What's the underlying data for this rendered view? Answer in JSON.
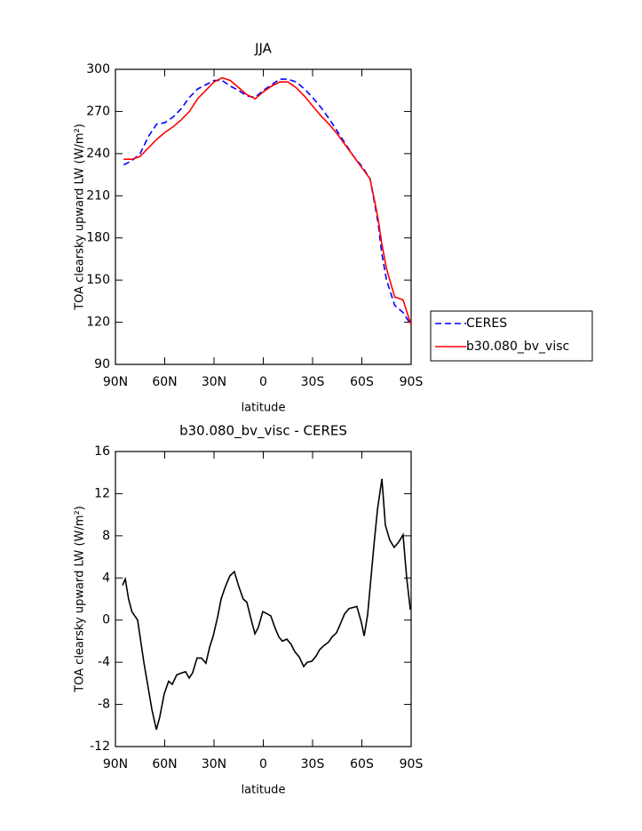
{
  "chart_data": [
    {
      "type": "line",
      "title": "JJA",
      "xlabel": "latitude",
      "ylabel": "TOA clearsky upward LW (W/m²)",
      "x": [
        85,
        80,
        75,
        70,
        65,
        60,
        55,
        50,
        45,
        40,
        35,
        30,
        25,
        20,
        15,
        10,
        5,
        0,
        -5,
        -10,
        -15,
        -20,
        -25,
        -30,
        -35,
        -40,
        -45,
        -50,
        -55,
        -60,
        -65,
        -68,
        -70,
        -72,
        -75,
        -80,
        -85,
        -90
      ],
      "series": [
        {
          "name": "CERES",
          "color": "#0000ff",
          "style": "dashed",
          "values": [
            232,
            235,
            240,
            252,
            261,
            262,
            266,
            272,
            280,
            286,
            289,
            292,
            292,
            288,
            285,
            281,
            280,
            285,
            289,
            293,
            293,
            291,
            286,
            280,
            273,
            265,
            256,
            247,
            238,
            231,
            222,
            203,
            190,
            170,
            150,
            132,
            127,
            118
          ]
        },
        {
          "name": "b30.080_bv_visc",
          "color": "#ff0000",
          "style": "solid",
          "values": [
            236,
            236,
            238,
            244,
            250,
            255,
            259,
            264,
            270,
            279,
            285,
            291,
            294,
            292,
            287,
            282,
            279,
            284,
            288,
            291,
            291,
            287,
            281,
            274,
            267,
            261,
            254,
            246,
            238,
            230,
            222,
            205,
            193,
            177,
            158,
            138,
            136,
            118
          ]
        }
      ],
      "xlim": [
        90,
        -90
      ],
      "xticks": [
        {
          "value": 90,
          "label": "90N"
        },
        {
          "value": 60,
          "label": "60N"
        },
        {
          "value": 30,
          "label": "30N"
        },
        0,
        {
          "value": -30,
          "label": "30S"
        },
        {
          "value": -60,
          "label": "60S"
        },
        {
          "value": -90,
          "label": "90S"
        }
      ],
      "ylim": [
        90,
        300
      ],
      "yticks": [
        90,
        120,
        150,
        180,
        210,
        240,
        270,
        300
      ],
      "legend": "right"
    },
    {
      "type": "line",
      "title": "b30.080_bv_visc - CERES",
      "xlabel": "latitude",
      "ylabel": "TOA clearsky upward LW (W/m²)",
      "x": [
        85.7,
        84,
        82,
        80,
        76.5,
        72.7,
        67.8,
        65.1,
        63,
        60.3,
        57.6,
        55.4,
        52.7,
        49.5,
        47.3,
        45.1,
        43,
        40.3,
        37.6,
        34.9,
        32.7,
        30.5,
        27.8,
        25.7,
        23,
        20.3,
        17.6,
        14.9,
        12.2,
        10,
        7.3,
        5.1,
        3,
        0.3,
        -2.4,
        -4.6,
        -7.3,
        -9.5,
        -11.6,
        -14.3,
        -17,
        -19.2,
        -21.9,
        -24.6,
        -26.8,
        -29.5,
        -32.2,
        -34.3,
        -37,
        -39.7,
        -41.9,
        -44.6,
        -46.8,
        -49.5,
        -52.2,
        -57,
        -59.7,
        -61.4,
        -63.5,
        -67.3,
        -69.5,
        -72.2,
        -74.3,
        -77,
        -79.7,
        -82.4,
        -85.1,
        -87.3,
        -89.5
      ],
      "series": [
        {
          "color": "#000000",
          "style": "solid",
          "values": [
            3.3,
            3.9,
            2,
            0.8,
            0,
            -4,
            -8.5,
            -10.4,
            -9.2,
            -7,
            -5.8,
            -6.1,
            -5.2,
            -5,
            -4.9,
            -5.5,
            -5,
            -3.6,
            -3.6,
            -4.1,
            -2.6,
            -1.5,
            0.3,
            2,
            3.2,
            4.2,
            4.6,
            3.2,
            2,
            1.7,
            0,
            -1.3,
            -0.7,
            0.8,
            0.6,
            0.4,
            -0.8,
            -1.6,
            -2,
            -1.8,
            -2.3,
            -3,
            -3.5,
            -4.4,
            -4,
            -3.9,
            -3.4,
            -2.8,
            -2.4,
            -2.1,
            -1.6,
            -1.2,
            -0.4,
            0.6,
            1.1,
            1.3,
            -0.2,
            -1.5,
            0.5,
            7,
            10.5,
            13.4,
            9,
            7.6,
            6.9,
            7.4,
            8.1,
            4,
            1
          ]
        }
      ],
      "xlim": [
        90,
        -90
      ],
      "xticks": [
        {
          "value": 90,
          "label": "90N"
        },
        {
          "value": 60,
          "label": "60N"
        },
        {
          "value": 30,
          "label": "30N"
        },
        0,
        {
          "value": -30,
          "label": "30S"
        },
        {
          "value": -60,
          "label": "60S"
        },
        {
          "value": -90,
          "label": "90S"
        }
      ],
      "ylim": [
        -12,
        16
      ],
      "yticks": [
        -12,
        -8,
        -4,
        0,
        4,
        8,
        12,
        16
      ]
    }
  ]
}
